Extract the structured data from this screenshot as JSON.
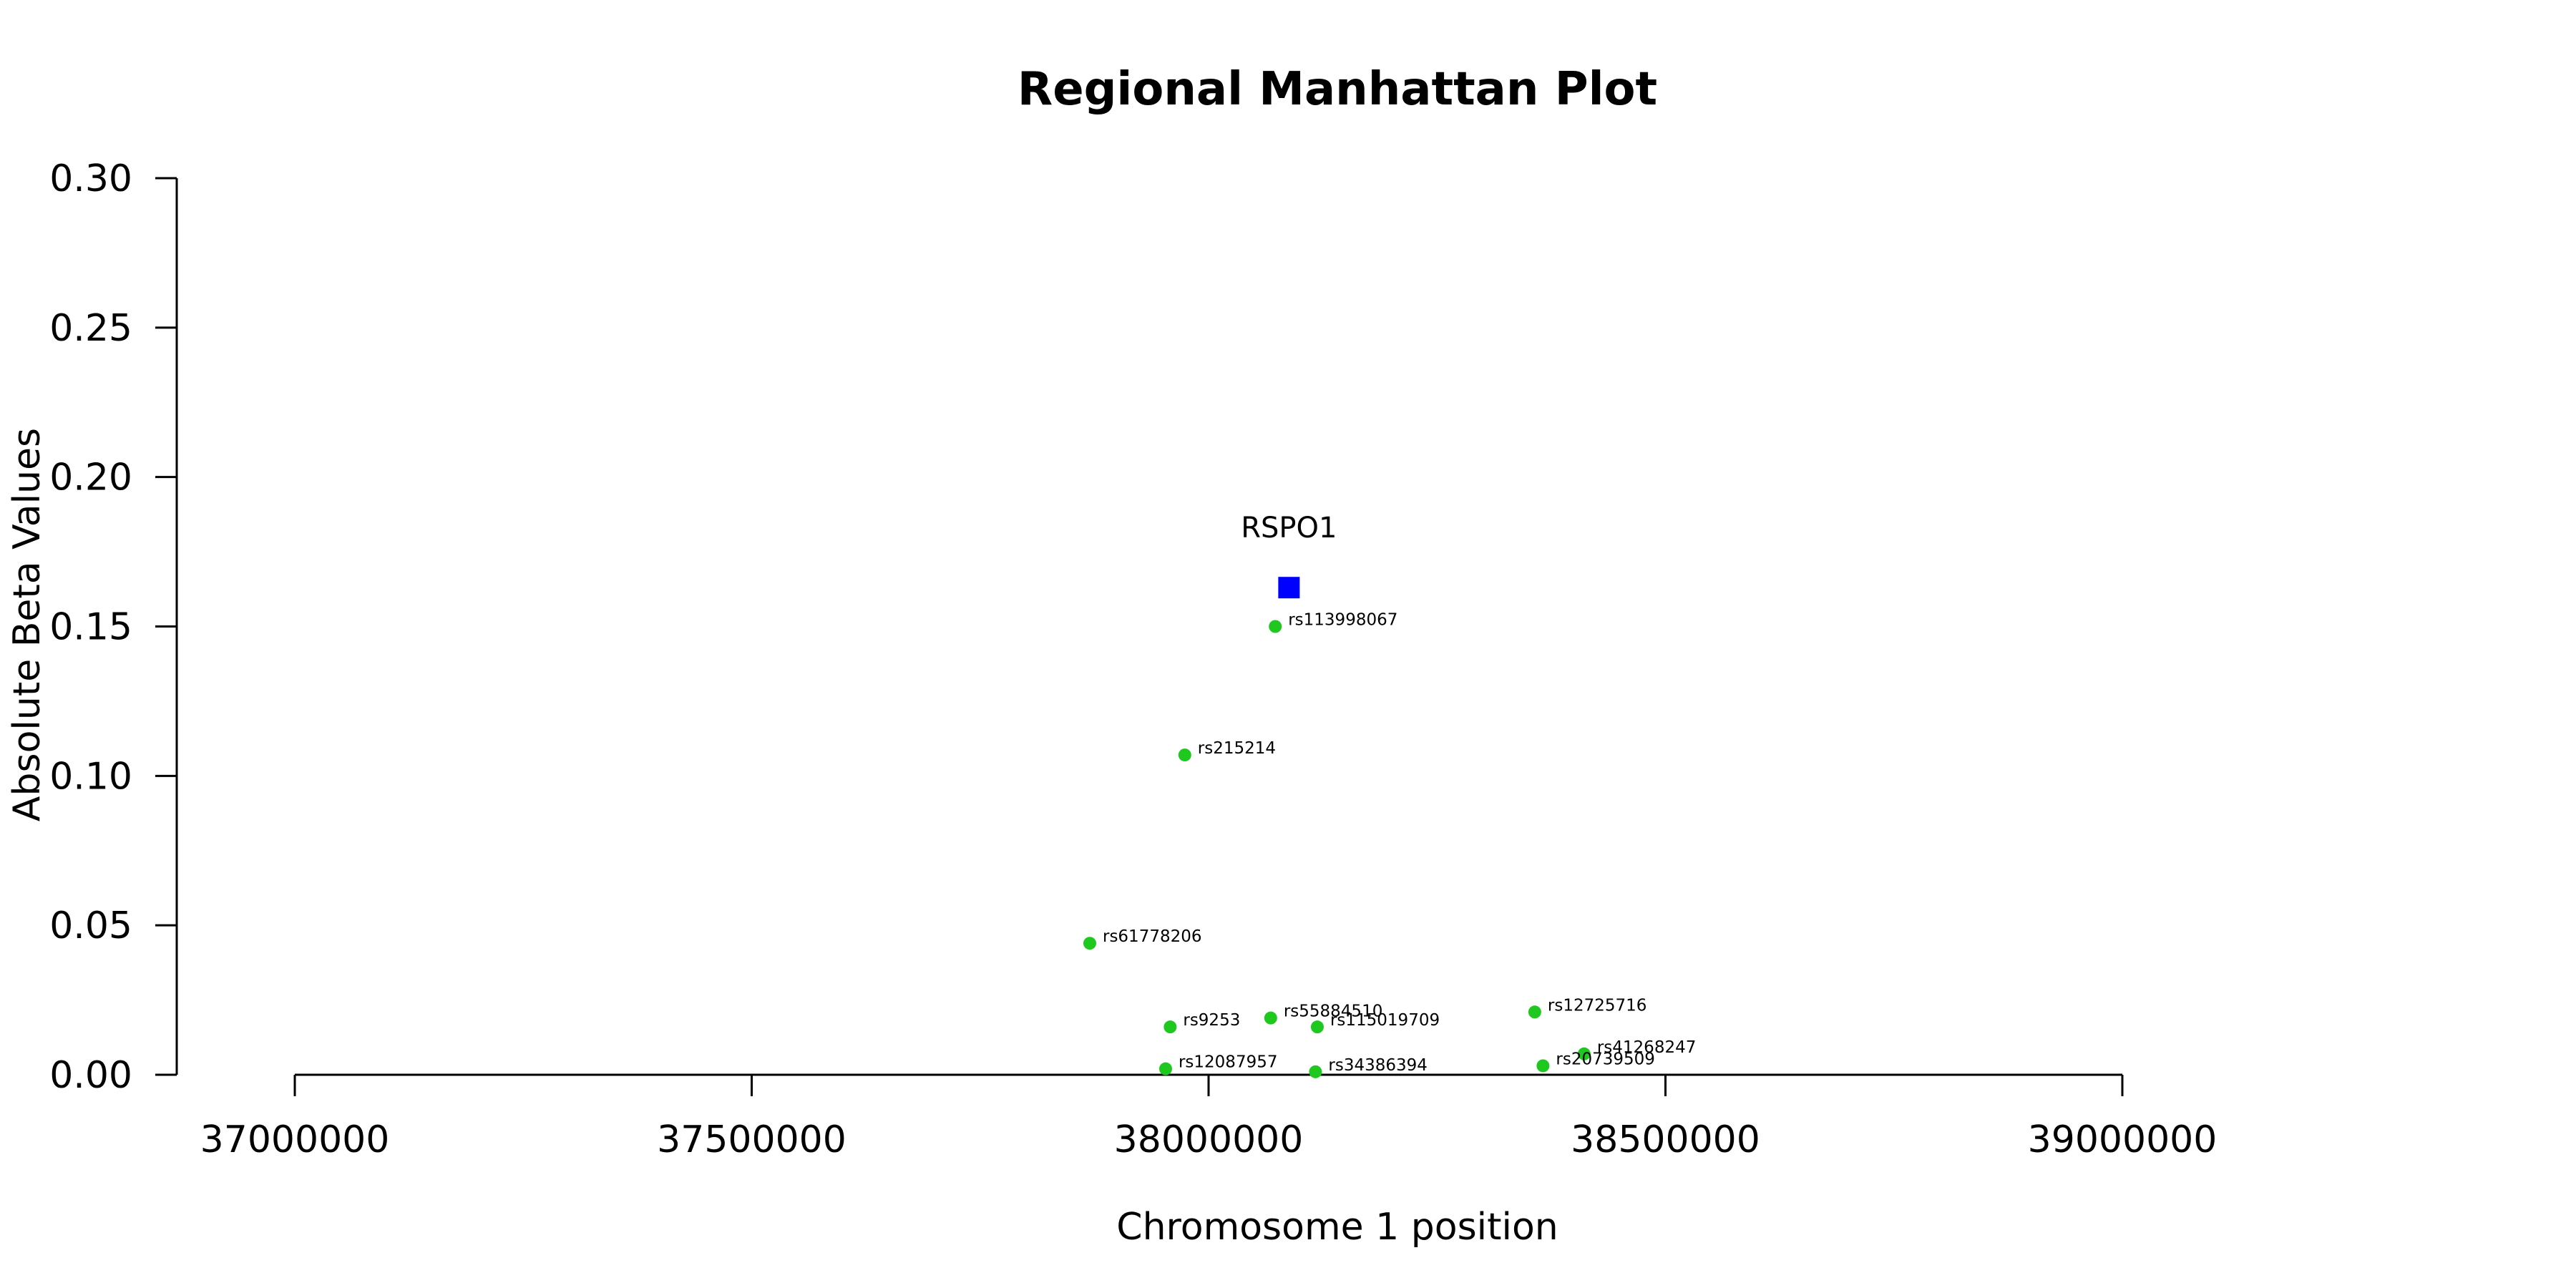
{
  "chart_data": {
    "type": "scatter",
    "title": "Regional Manhattan Plot",
    "xlabel": "Chromosome 1 position",
    "ylabel": "Absolute Beta Values",
    "xlim": [
      37000000,
      39000000
    ],
    "ylim": [
      0,
      0.3
    ],
    "x_ticks": [
      37000000,
      37500000,
      38000000,
      38500000,
      39000000
    ],
    "x_tick_labels": [
      "37000000",
      "37500000",
      "38000000",
      "38500000",
      "39000000"
    ],
    "y_ticks": [
      0,
      0.05,
      0.1,
      0.15,
      0.2,
      0.25,
      0.3
    ],
    "y_tick_labels": [
      "0.00",
      "0.05",
      "0.10",
      "0.15",
      "0.20",
      "0.25",
      "0.30"
    ],
    "grid": false,
    "gene": {
      "name": "RSPO1",
      "x": 38088000,
      "y": 0.163,
      "color": "#0000ff",
      "marker": "square"
    },
    "snp_color": "#1ec81e",
    "snps": [
      {
        "name": "rs113998067",
        "x": 38073000,
        "y": 0.15
      },
      {
        "name": "rs215214",
        "x": 37974000,
        "y": 0.107
      },
      {
        "name": "rs61778206",
        "x": 37870000,
        "y": 0.044
      },
      {
        "name": "rs9253",
        "x": 37958000,
        "y": 0.016
      },
      {
        "name": "rs55884510",
        "x": 38068000,
        "y": 0.019
      },
      {
        "name": "rs115019709",
        "x": 38119000,
        "y": 0.016
      },
      {
        "name": "rs12725716",
        "x": 38357000,
        "y": 0.021
      },
      {
        "name": "rs41268247",
        "x": 38411000,
        "y": 0.007
      },
      {
        "name": "rs20739509",
        "x": 38366000,
        "y": 0.003
      },
      {
        "name": "rs12087957",
        "x": 37953000,
        "y": 0.002
      },
      {
        "name": "rs34386394",
        "x": 38117000,
        "y": 0.001
      }
    ]
  }
}
